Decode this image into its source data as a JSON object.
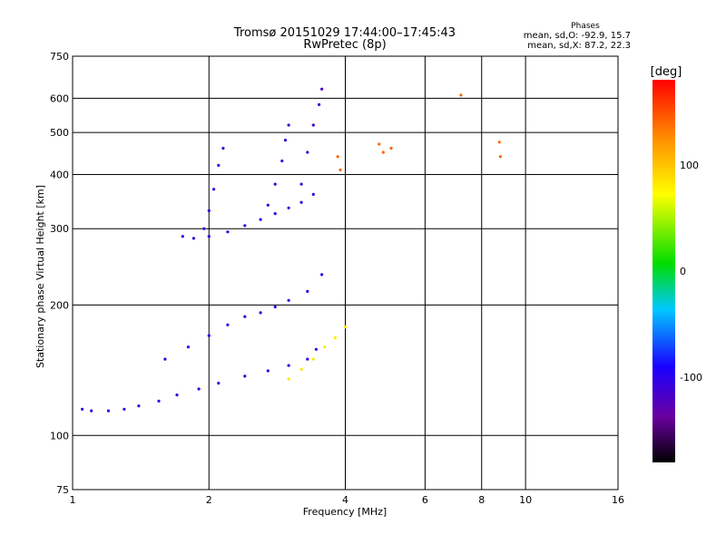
{
  "chart_data": {
    "type": "scatter",
    "title": "Tromsø 20151029 17:44:00–17:45:43",
    "subtitle": "RwPretec (8p)",
    "xlabel": "Frequency [MHz]",
    "ylabel": "Stationary phase Virtual Height [km]",
    "xscale": "log",
    "yscale": "log",
    "xlim": [
      1,
      16
    ],
    "ylim": [
      75,
      750
    ],
    "x_ticks": [
      1,
      2,
      4,
      6,
      8,
      10,
      16
    ],
    "x_tick_labels": [
      "1",
      "2",
      "4",
      "6",
      "8",
      "10",
      "16"
    ],
    "y_ticks": [
      75,
      100,
      200,
      300,
      400,
      500,
      600,
      750
    ],
    "y_tick_labels": [
      "75",
      "100",
      "200",
      "300",
      "400",
      "500",
      "600",
      "750"
    ],
    "grid": true,
    "stats": {
      "title": "Phases",
      "line_o": "mean, sd,O: -92.9, 15.7",
      "line_x": "mean, sd,X: 87.2, 22.3"
    },
    "colorbar": {
      "label": "[deg]",
      "range": [
        -180,
        180
      ],
      "ticks": [
        100,
        0,
        -100
      ],
      "tick_labels": [
        "100",
        "0",
        "-100"
      ]
    },
    "traces": [
      {
        "name": "",
        "color_value": -105,
        "points": [
          [
            1.05,
            115
          ],
          [
            1.1,
            114
          ],
          [
            1.2,
            114
          ],
          [
            1.3,
            115
          ],
          [
            1.4,
            117
          ],
          [
            1.55,
            120
          ],
          [
            1.7,
            124
          ],
          [
            1.9,
            128
          ],
          [
            2.1,
            132
          ],
          [
            2.4,
            137
          ],
          [
            2.7,
            141
          ],
          [
            3.0,
            145
          ],
          [
            3.3,
            150
          ],
          [
            3.45,
            158
          ]
        ]
      },
      {
        "name": "",
        "color_value": -105,
        "points": [
          [
            1.75,
            288
          ],
          [
            1.85,
            285
          ],
          [
            2.0,
            288
          ],
          [
            2.2,
            295
          ],
          [
            2.4,
            305
          ],
          [
            2.6,
            315
          ],
          [
            2.8,
            325
          ],
          [
            3.0,
            335
          ],
          [
            3.2,
            345
          ],
          [
            3.4,
            360
          ]
        ]
      },
      {
        "name": "",
        "color_value": -110,
        "points": [
          [
            1.95,
            300
          ],
          [
            2.0,
            330
          ],
          [
            2.05,
            370
          ],
          [
            2.1,
            420
          ],
          [
            2.15,
            460
          ]
        ]
      },
      {
        "name": "",
        "color_value": -110,
        "points": [
          [
            2.7,
            340
          ],
          [
            2.8,
            380
          ],
          [
            2.9,
            430
          ],
          [
            2.95,
            480
          ],
          [
            3.0,
            520
          ]
        ]
      },
      {
        "name": "",
        "color_value": -115,
        "points": [
          [
            3.2,
            380
          ],
          [
            3.3,
            450
          ],
          [
            3.4,
            520
          ],
          [
            3.5,
            580
          ],
          [
            3.55,
            630
          ]
        ]
      },
      {
        "name": "",
        "color_value": -100,
        "points": [
          [
            1.6,
            150
          ],
          [
            1.8,
            160
          ],
          [
            2.0,
            170
          ],
          [
            2.2,
            180
          ],
          [
            2.4,
            188
          ],
          [
            2.6,
            192
          ],
          [
            2.8,
            198
          ],
          [
            3.0,
            205
          ],
          [
            3.3,
            215
          ],
          [
            3.55,
            235
          ]
        ]
      },
      {
        "name": "",
        "color_value": 80,
        "points": [
          [
            3.0,
            135
          ],
          [
            3.2,
            142
          ],
          [
            3.4,
            150
          ],
          [
            3.6,
            160
          ],
          [
            3.8,
            168
          ],
          [
            4.0,
            178
          ]
        ]
      },
      {
        "name": "",
        "color_value": 140,
        "points": [
          [
            3.85,
            440
          ],
          [
            3.9,
            410
          ],
          [
            4.75,
            470
          ],
          [
            4.85,
            450
          ],
          [
            5.05,
            460
          ],
          [
            8.75,
            475
          ],
          [
            8.8,
            440
          ],
          [
            7.2,
            610
          ]
        ]
      }
    ]
  }
}
